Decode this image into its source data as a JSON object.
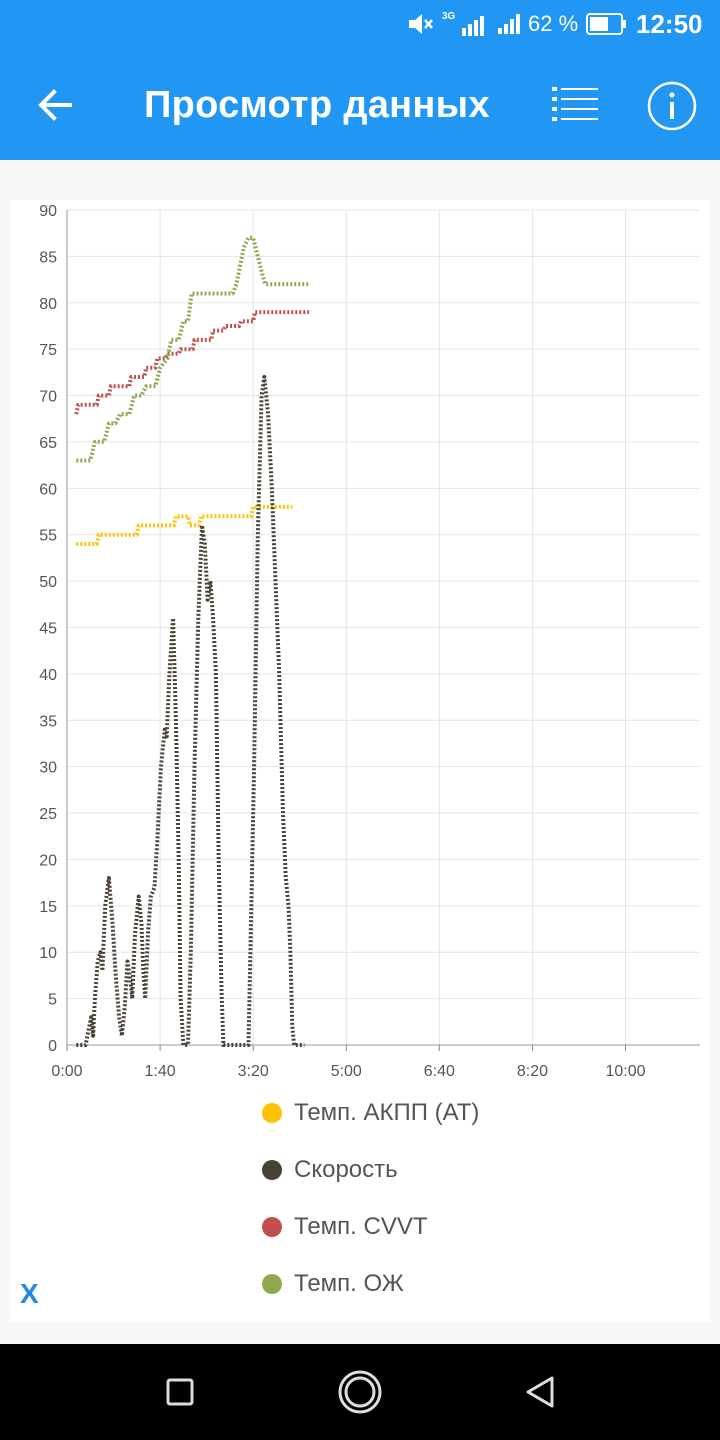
{
  "status_bar": {
    "network": "3G",
    "battery_percent": "62 %",
    "time": "12:50",
    "battery_level": 0.62
  },
  "app_bar": {
    "title": "Просмотр данных",
    "back_icon": "arrow-back-icon",
    "list_icon": "list-icon",
    "info_icon": "info-icon"
  },
  "chart_data": {
    "type": "line",
    "x_ticks": [
      "0:00",
      "1:40",
      "3:20",
      "5:00",
      "6:40",
      "8:20",
      "10:00"
    ],
    "x_tick_seconds": [
      0,
      100,
      200,
      300,
      400,
      500,
      600
    ],
    "y_ticks": [
      0,
      5,
      10,
      15,
      20,
      25,
      30,
      35,
      40,
      45,
      50,
      55,
      60,
      65,
      70,
      75,
      80,
      85,
      90
    ],
    "xlim_seconds": [
      0,
      680
    ],
    "ylim": [
      0,
      90
    ],
    "grid": true,
    "legend_position": "bottom",
    "series": [
      {
        "name": "Темп. АКПП (АТ)",
        "color": "#ffc107",
        "points": [
          [
            10,
            54
          ],
          [
            32,
            54
          ],
          [
            34,
            55
          ],
          [
            75,
            55
          ],
          [
            77,
            56
          ],
          [
            115,
            56
          ],
          [
            117,
            57
          ],
          [
            130,
            57
          ],
          [
            132,
            56
          ],
          [
            142,
            56
          ],
          [
            144,
            57
          ],
          [
            198,
            57
          ],
          [
            200,
            58
          ],
          [
            242,
            58
          ]
        ]
      },
      {
        "name": "Скорость",
        "color": "#4a4136",
        "points": [
          [
            10,
            0
          ],
          [
            20,
            0
          ],
          [
            24,
            2
          ],
          [
            26,
            3
          ],
          [
            28,
            1
          ],
          [
            30,
            5
          ],
          [
            33,
            9
          ],
          [
            36,
            10
          ],
          [
            38,
            8
          ],
          [
            41,
            15
          ],
          [
            45,
            18
          ],
          [
            49,
            13
          ],
          [
            52,
            8
          ],
          [
            56,
            3
          ],
          [
            59,
            1
          ],
          [
            62,
            4
          ],
          [
            65,
            9
          ],
          [
            68,
            7
          ],
          [
            70,
            5
          ],
          [
            73,
            12
          ],
          [
            77,
            16
          ],
          [
            80,
            13
          ],
          [
            82,
            8
          ],
          [
            84,
            5
          ],
          [
            87,
            12
          ],
          [
            90,
            16
          ],
          [
            94,
            17
          ],
          [
            97,
            22
          ],
          [
            101,
            30
          ],
          [
            105,
            34
          ],
          [
            107,
            33
          ],
          [
            110,
            40
          ],
          [
            114,
            46
          ],
          [
            117,
            35
          ],
          [
            120,
            20
          ],
          [
            122,
            5
          ],
          [
            125,
            0
          ],
          [
            130,
            0
          ],
          [
            133,
            10
          ],
          [
            137,
            30
          ],
          [
            141,
            46
          ],
          [
            145,
            56
          ],
          [
            148,
            54
          ],
          [
            151,
            48
          ],
          [
            154,
            50
          ],
          [
            157,
            46
          ],
          [
            160,
            40
          ],
          [
            163,
            20
          ],
          [
            166,
            6
          ],
          [
            168,
            0
          ],
          [
            195,
            0
          ],
          [
            197,
            10
          ],
          [
            201,
            30
          ],
          [
            205,
            55
          ],
          [
            209,
            70
          ],
          [
            212,
            72
          ],
          [
            216,
            68
          ],
          [
            220,
            60
          ],
          [
            224,
            50
          ],
          [
            228,
            40
          ],
          [
            232,
            25
          ],
          [
            235,
            18
          ],
          [
            238,
            15
          ],
          [
            240,
            10
          ],
          [
            242,
            2
          ],
          [
            244,
            0
          ],
          [
            255,
            0
          ]
        ]
      },
      {
        "name": "Темп. CVVT",
        "color": "#c0504d",
        "points": [
          [
            10,
            68
          ],
          [
            12,
            69
          ],
          [
            32,
            69
          ],
          [
            34,
            70
          ],
          [
            45,
            70
          ],
          [
            47,
            71
          ],
          [
            67,
            71
          ],
          [
            69,
            72
          ],
          [
            83,
            72
          ],
          [
            85,
            73
          ],
          [
            95,
            73
          ],
          [
            97,
            74
          ],
          [
            106,
            74
          ],
          [
            108,
            74.5
          ],
          [
            120,
            74.5
          ],
          [
            122,
            75
          ],
          [
            135,
            75
          ],
          [
            137,
            76
          ],
          [
            155,
            76
          ],
          [
            157,
            77
          ],
          [
            168,
            77
          ],
          [
            170,
            77.5
          ],
          [
            185,
            77.5
          ],
          [
            187,
            78
          ],
          [
            200,
            78
          ],
          [
            202,
            79
          ],
          [
            233,
            79
          ],
          [
            235,
            79
          ],
          [
            260,
            79
          ]
        ]
      },
      {
        "name": "Темп. ОЖ",
        "color": "#8ea851",
        "points": [
          [
            10,
            63
          ],
          [
            25,
            63
          ],
          [
            30,
            65
          ],
          [
            40,
            65
          ],
          [
            45,
            67
          ],
          [
            52,
            67
          ],
          [
            57,
            68
          ],
          [
            67,
            68
          ],
          [
            72,
            70
          ],
          [
            80,
            70
          ],
          [
            85,
            71
          ],
          [
            95,
            71
          ],
          [
            100,
            73
          ],
          [
            108,
            74
          ],
          [
            112,
            76
          ],
          [
            120,
            76
          ],
          [
            125,
            78
          ],
          [
            130,
            78
          ],
          [
            134,
            81
          ],
          [
            165,
            81
          ],
          [
            168,
            81
          ],
          [
            178,
            81
          ],
          [
            182,
            82
          ],
          [
            186,
            84
          ],
          [
            190,
            86
          ],
          [
            195,
            87
          ],
          [
            200,
            87
          ],
          [
            205,
            85
          ],
          [
            210,
            83
          ],
          [
            213,
            82
          ],
          [
            245,
            82
          ],
          [
            260,
            82
          ]
        ]
      }
    ]
  },
  "legend": [
    {
      "label": "Темп. АКПП (АТ)",
      "color": "#ffc107"
    },
    {
      "label": "Скорость",
      "color": "#4a4136"
    },
    {
      "label": "Темп. CVVT",
      "color": "#c0504d"
    },
    {
      "label": "Темп. ОЖ",
      "color": "#8ea851"
    }
  ],
  "close_label": "X",
  "nav_bar": {
    "recent_icon": "square-icon",
    "home_icon": "circle-icon",
    "back_icon": "triangle-back-icon"
  }
}
